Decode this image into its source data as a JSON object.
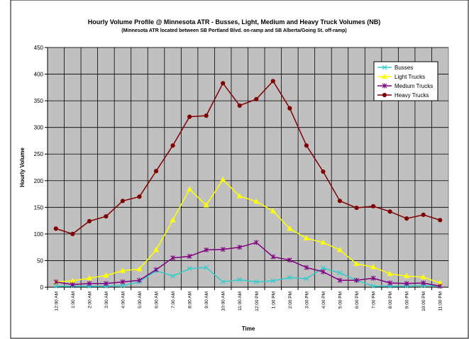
{
  "chart_data": {
    "type": "line",
    "title": "Hourly Volume Profile @ Minnesota ATR - Busses, Light, Medium and Heavy Truck Volumes (NB)",
    "subtitle": "(Minnesota ATR located between SB Portland Blvd. on-ramp and SB Alberta/Going St. off-ramp)",
    "x_label": "Time",
    "y_label": "Hourly Volume",
    "categories": [
      "12:00 AM",
      "1:00 AM",
      "2:00 AM",
      "3:00 AM",
      "4:00 AM",
      "5:00 AM",
      "6:00 AM",
      "7:00 AM",
      "8:00 AM",
      "9:00 AM",
      "10:00 AM",
      "11:00 AM",
      "12:00 PM",
      "1:00 PM",
      "2:00 PM",
      "3:00 PM",
      "4:00 PM",
      "5:00 PM",
      "6:00 PM",
      "7:00 PM",
      "8:00 PM",
      "9:00 PM",
      "10:00 PM",
      "11:00 PM"
    ],
    "series": [
      {
        "name": "Busses",
        "color": "#33cccc",
        "marker": "x",
        "values": [
          2,
          2,
          2,
          2,
          3,
          10,
          31,
          21,
          35,
          37,
          10,
          14,
          10,
          12,
          18,
          16,
          36,
          27,
          13,
          2,
          2,
          2,
          3,
          2
        ]
      },
      {
        "name": "Light Trucks",
        "color": "#ffff00",
        "marker": "triangle",
        "values": [
          10,
          12,
          17,
          22,
          31,
          34,
          70,
          126,
          184,
          154,
          202,
          171,
          161,
          143,
          110,
          92,
          84,
          70,
          44,
          38,
          25,
          21,
          19,
          8
        ]
      },
      {
        "name": "Medium Trucks",
        "color": "#800080",
        "marker": "star",
        "values": [
          10,
          5,
          7,
          7,
          10,
          13,
          33,
          55,
          58,
          70,
          71,
          75,
          84,
          57,
          51,
          37,
          29,
          13,
          13,
          17,
          8,
          7,
          8,
          2
        ]
      },
      {
        "name": "Heavy Trucks",
        "color": "#800000",
        "marker": "circle",
        "values": [
          110,
          100,
          124,
          133,
          162,
          170,
          218,
          266,
          320,
          322,
          383,
          341,
          353,
          387,
          336,
          266,
          217,
          162,
          149,
          152,
          142,
          129,
          136,
          126
        ]
      }
    ],
    "ylim": [
      0,
      450
    ],
    "yticks": [
      0,
      50,
      100,
      150,
      200,
      250,
      300,
      350,
      400,
      450
    ],
    "grid": true,
    "legend": "top-right",
    "plot_color": "#c0c0c0"
  }
}
